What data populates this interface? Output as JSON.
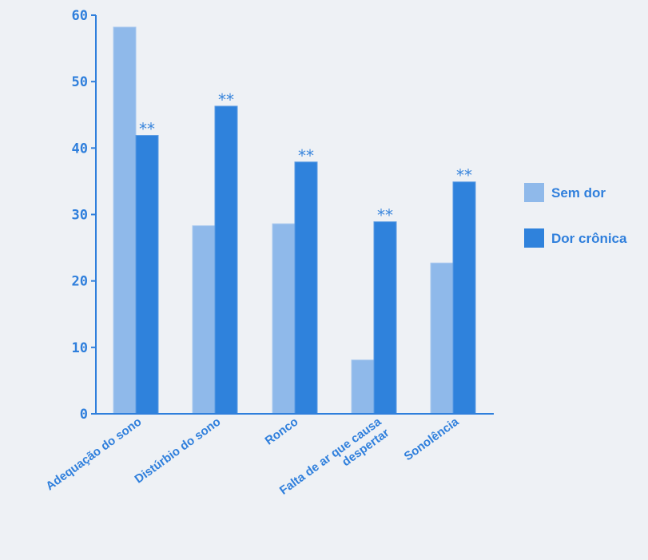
{
  "chart_data": {
    "type": "bar",
    "title": "",
    "xlabel": "",
    "ylabel": "",
    "ylim": [
      0,
      60
    ],
    "yticks": [
      "0",
      "10",
      "20",
      "30",
      "40",
      "50",
      "60"
    ],
    "categories": [
      [
        "Adequação do sono"
      ],
      [
        "Distúrbio do sono"
      ],
      [
        "Ronco"
      ],
      [
        "Falta de ar que causa",
        "despertar"
      ],
      [
        "Sonolência"
      ]
    ],
    "series": [
      {
        "name": "Sem dor",
        "color": "#8fb9ea",
        "values": [
          58.2,
          28.3,
          28.6,
          8.1,
          22.7
        ]
      },
      {
        "name": "Dor crônica",
        "color": "#2f82dc",
        "values": [
          41.9,
          46.3,
          37.9,
          28.9,
          34.9
        ]
      }
    ],
    "annotations": [
      "**",
      "**",
      "**",
      "**",
      "**"
    ],
    "annotation_color": "#3a86dc",
    "axis_color": "#2f7fdc",
    "text_color": "#2f7fdc",
    "legend_position": "right",
    "grid": false
  }
}
